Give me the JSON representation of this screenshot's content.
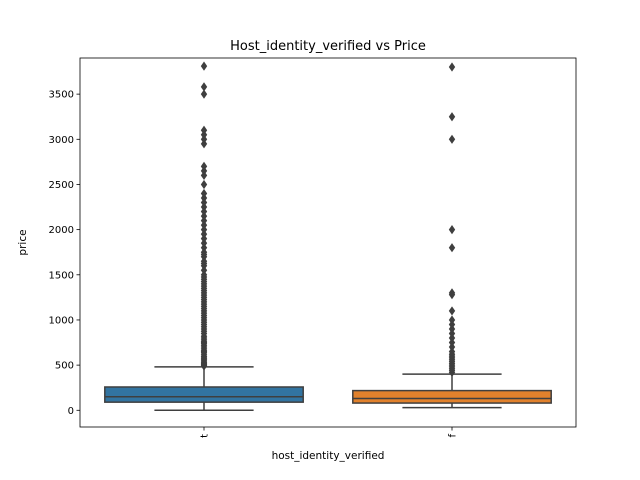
{
  "chart_data": {
    "type": "box",
    "title": "Host_identity_verified vs Price",
    "xlabel": "host_identity_verified",
    "ylabel": "price",
    "categories": [
      "t",
      "f"
    ],
    "ylim": [
      -185,
      3900
    ],
    "yticks": [
      0,
      500,
      1000,
      1500,
      2000,
      2500,
      3000,
      3500
    ],
    "grid": false,
    "legend": "none",
    "series": [
      {
        "category": "t",
        "color": "#3274a1",
        "whisker_low": 0,
        "q1": 90,
        "median": 150,
        "q3": 258,
        "whisker_high": 480,
        "outliers": [
          490,
          500,
          510,
          520,
          530,
          545,
          560,
          575,
          590,
          600,
          620,
          640,
          650,
          660,
          680,
          700,
          720,
          740,
          750,
          760,
          780,
          800,
          820,
          850,
          875,
          900,
          925,
          950,
          975,
          1000,
          1025,
          1050,
          1075,
          1100,
          1125,
          1150,
          1175,
          1200,
          1225,
          1250,
          1275,
          1300,
          1325,
          1350,
          1375,
          1400,
          1425,
          1450,
          1475,
          1500,
          1550,
          1600,
          1625,
          1650,
          1700,
          1725,
          1750,
          1800,
          1850,
          1900,
          1950,
          2000,
          2050,
          2100,
          2150,
          2200,
          2250,
          2300,
          2350,
          2400,
          2500,
          2600,
          2650,
          2700,
          2950,
          3000,
          3050,
          3100,
          3500,
          3580,
          3810
        ]
      },
      {
        "category": "f",
        "color": "#e1812c",
        "whisker_low": 30,
        "q1": 80,
        "median": 130,
        "q3": 218,
        "whisker_high": 400,
        "outliers": [
          420,
          440,
          460,
          480,
          500,
          520,
          540,
          560,
          580,
          600,
          620,
          650,
          700,
          750,
          800,
          850,
          900,
          950,
          1000,
          1100,
          1280,
          1300,
          1800,
          2000,
          3000,
          3250,
          3800
        ]
      }
    ]
  }
}
